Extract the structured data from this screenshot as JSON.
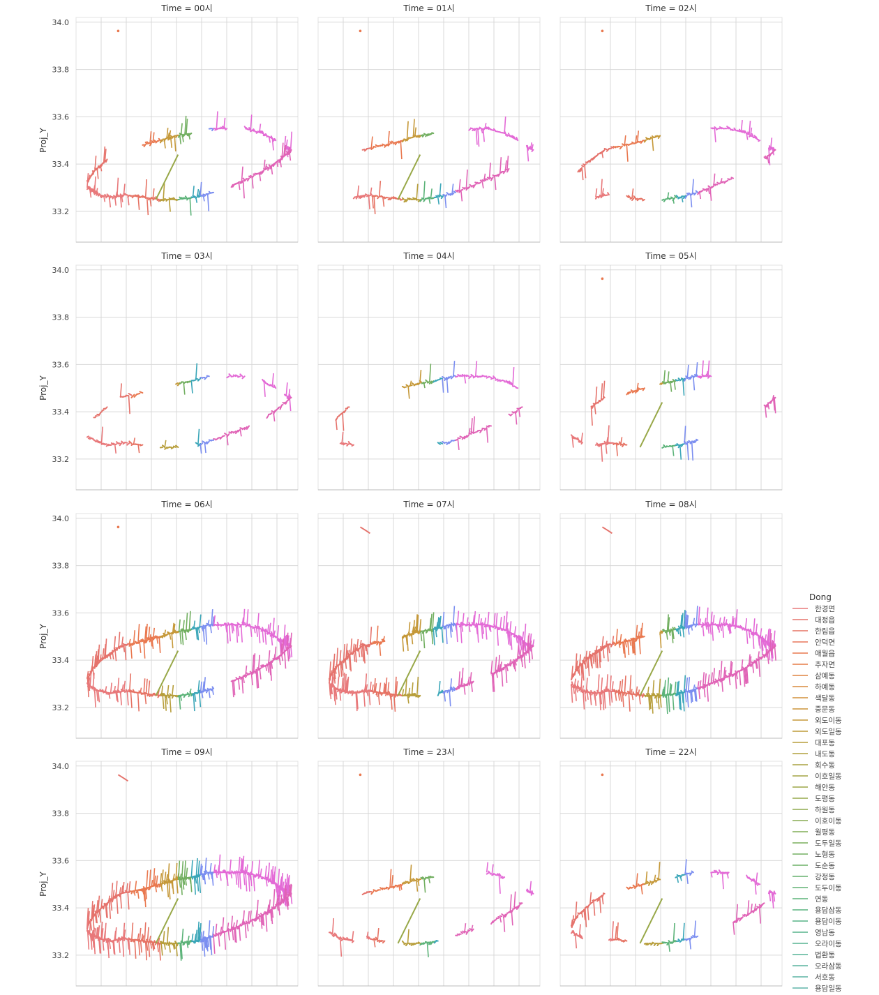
{
  "figure": {
    "facet_variable": "Time",
    "ylabel": "Proj_Y",
    "xlabel": "",
    "y_ticks": [
      "33.2",
      "33.4",
      "33.6",
      "33.8",
      "34.0"
    ],
    "legend_title": "Dong"
  },
  "chart_data": {
    "type": "line",
    "facet_by": "Time",
    "ylabel": "Proj_Y",
    "ylim": [
      33.07,
      34.02
    ],
    "y_ticks": [
      33.2,
      33.4,
      33.6,
      33.8,
      34.0
    ],
    "x_tick_labels_shown": false,
    "grid": true,
    "legend": {
      "title": "Dong",
      "placement": "right"
    },
    "panels": [
      {
        "title": "Time = 00시",
        "density": 0.55,
        "top_islet": "dot"
      },
      {
        "title": "Time = 01시",
        "density": 0.45,
        "top_islet": "dot"
      },
      {
        "title": "Time = 02시",
        "density": 0.4,
        "top_islet": "dot"
      },
      {
        "title": "Time = 03시",
        "density": 0.3,
        "top_islet": "none"
      },
      {
        "title": "Time = 04시",
        "density": 0.3,
        "top_islet": "none"
      },
      {
        "title": "Time = 05시",
        "density": 0.55,
        "top_islet": "dot"
      },
      {
        "title": "Time = 06시",
        "density": 0.8,
        "top_islet": "dot"
      },
      {
        "title": "Time = 07시",
        "density": 0.9,
        "top_islet": "trail"
      },
      {
        "title": "Time = 08시",
        "density": 0.92,
        "top_islet": "trail"
      },
      {
        "title": "Time = 09시",
        "density": 1.0,
        "top_islet": "trail"
      },
      {
        "title": "Time = 23시",
        "density": 0.45,
        "top_islet": "dot"
      },
      {
        "title": "Time = 22시",
        "density": 0.5,
        "top_islet": "dot"
      }
    ],
    "series": [
      {
        "name": "한경면",
        "color": "#e8787a"
      },
      {
        "name": "대정읍",
        "color": "#e5736c"
      },
      {
        "name": "한림읍",
        "color": "#e67364"
      },
      {
        "name": "안덕면",
        "color": "#e8765c"
      },
      {
        "name": "애월읍",
        "color": "#e9784f"
      },
      {
        "name": "추자면",
        "color": "#e57c46"
      },
      {
        "name": "삼예동",
        "color": "#df8341"
      },
      {
        "name": "하예동",
        "color": "#d98a3d"
      },
      {
        "name": "색달동",
        "color": "#d2903a"
      },
      {
        "name": "중문동",
        "color": "#cb9438"
      },
      {
        "name": "외도이동",
        "color": "#c59838"
      },
      {
        "name": "외도일동",
        "color": "#be9b39"
      },
      {
        "name": "대포동",
        "color": "#b79e3b"
      },
      {
        "name": "내도동",
        "color": "#b0a03d"
      },
      {
        "name": "회수동",
        "color": "#a9a240"
      },
      {
        "name": "이호일동",
        "color": "#a2a443"
      },
      {
        "name": "해안동",
        "color": "#9ba646"
      },
      {
        "name": "도평동",
        "color": "#95a84a"
      },
      {
        "name": "하원동",
        "color": "#8eaa4e"
      },
      {
        "name": "이호이동",
        "color": "#87ab52"
      },
      {
        "name": "월평동",
        "color": "#80ad57"
      },
      {
        "name": "도두일동",
        "color": "#79ae5c"
      },
      {
        "name": "노형동",
        "color": "#72af61"
      },
      {
        "name": "도순동",
        "color": "#6bb067"
      },
      {
        "name": "강정동",
        "color": "#65b16d"
      },
      {
        "name": "도두이동",
        "color": "#60b273"
      },
      {
        "name": "연동",
        "color": "#5cb379"
      },
      {
        "name": "용담삼동",
        "color": "#59b47f"
      },
      {
        "name": "용담이동",
        "color": "#57b485"
      },
      {
        "name": "영남동",
        "color": "#56b48b"
      },
      {
        "name": "오라이동",
        "color": "#56b491"
      },
      {
        "name": "법환동",
        "color": "#57b497"
      },
      {
        "name": "오라삼동",
        "color": "#59b49d"
      },
      {
        "name": "서호동",
        "color": "#5bb3a3"
      },
      {
        "name": "용담일동",
        "color": "#5eb3a9"
      }
    ]
  }
}
